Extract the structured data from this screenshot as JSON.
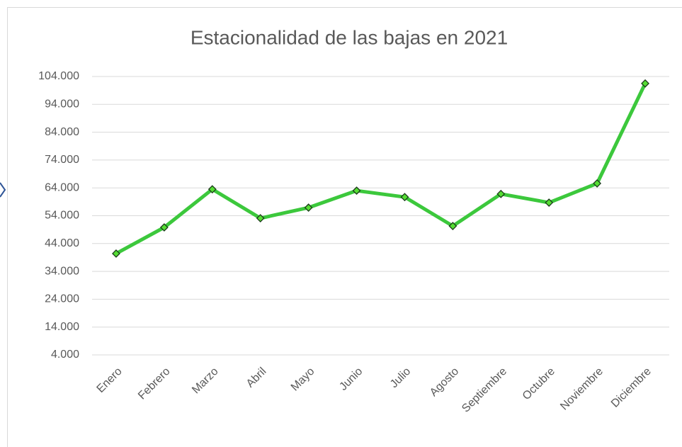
{
  "chart_data": {
    "type": "line",
    "title": "Estacionalidad de las bajas en 2021",
    "categories": [
      "Enero",
      "Febrero",
      "Marzo",
      "Abril",
      "Mayo",
      "Junio",
      "Julio",
      "Agosto",
      "Septiembre",
      "Octubre",
      "Noviembre",
      "Diciembre"
    ],
    "values": [
      40400,
      49800,
      63500,
      53100,
      56900,
      63000,
      60700,
      50300,
      61800,
      58700,
      65600,
      101500
    ],
    "color": "#3cc83c",
    "marker_color": "#55dd33",
    "ylim": [
      4000,
      104000
    ],
    "yticks": [
      {
        "value": 4000,
        "label": "4.000"
      },
      {
        "value": 14000,
        "label": "14.000"
      },
      {
        "value": 24000,
        "label": "24.000"
      },
      {
        "value": 34000,
        "label": "34.000"
      },
      {
        "value": 44000,
        "label": "44.000"
      },
      {
        "value": 54000,
        "label": "54.000"
      },
      {
        "value": 64000,
        "label": "64.000"
      },
      {
        "value": 74000,
        "label": "74.000"
      },
      {
        "value": 84000,
        "label": "84.000"
      },
      {
        "value": 94000,
        "label": "94.000"
      },
      {
        "value": 104000,
        "label": "104.000"
      }
    ],
    "grid": true
  }
}
